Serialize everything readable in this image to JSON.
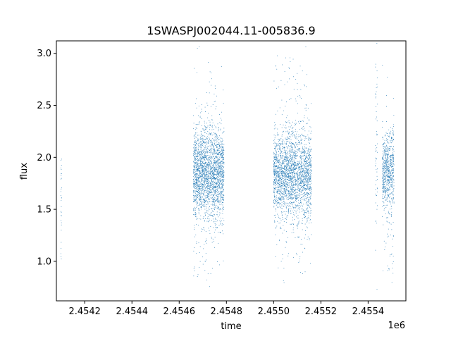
{
  "chart_data": {
    "type": "scatter",
    "title": "1SWASPJ002044.11-005836.9",
    "xlabel": "time",
    "ylabel": "flux",
    "x_offset_label": "1e6",
    "xlim": [
      2454080,
      2455560
    ],
    "ylim": [
      0.62,
      3.12
    ],
    "x_ticks": [
      2454200,
      2454400,
      2454600,
      2454800,
      2455000,
      2455200,
      2455400
    ],
    "x_tick_labels": [
      "2.4542",
      "2.4544",
      "2.4546",
      "2.4548",
      "2.4550",
      "2.4552",
      "2.4554"
    ],
    "y_ticks": [
      1.0,
      1.5,
      2.0,
      2.5,
      3.0
    ],
    "y_tick_labels": [
      "1.0",
      "1.5",
      "2.0",
      "2.5",
      "3.0"
    ],
    "grid": false,
    "marker_color": "#1f77b4",
    "clusters": [
      {
        "x_start": 2454099,
        "x_end": 2454102,
        "y_center": 1.7,
        "y_spread": 0.22,
        "count": 25
      },
      {
        "x_start": 2454098,
        "x_end": 2454101,
        "y_center": 1.2,
        "y_spread": 0.1,
        "count": 6
      },
      {
        "x_start": 2454660,
        "x_end": 2454790,
        "y_center": 1.83,
        "y_spread": 0.21,
        "count": 2200
      },
      {
        "x_start": 2454660,
        "x_end": 2454790,
        "y_center": 1.9,
        "y_spread": 0.55,
        "count": 300
      },
      {
        "x_start": 2455000,
        "x_end": 2455160,
        "y_center": 1.83,
        "y_spread": 0.2,
        "count": 2300
      },
      {
        "x_start": 2455000,
        "x_end": 2455160,
        "y_center": 1.9,
        "y_spread": 0.55,
        "count": 300
      },
      {
        "x_start": 2455430,
        "x_end": 2455440,
        "y_center": 2.2,
        "y_spread": 0.5,
        "count": 60
      },
      {
        "x_start": 2455460,
        "x_end": 2455510,
        "y_center": 1.87,
        "y_spread": 0.17,
        "count": 650
      },
      {
        "x_start": 2455460,
        "x_end": 2455510,
        "y_center": 1.7,
        "y_spread": 0.5,
        "count": 120
      }
    ]
  }
}
